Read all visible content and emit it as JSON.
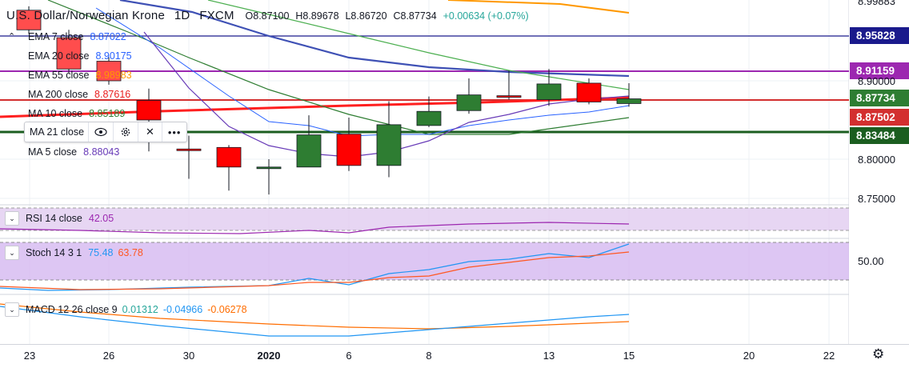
{
  "header": {
    "symbol": "U.S. Dollar/Norwegian Krone",
    "interval": "1D",
    "broker": "FXCM",
    "open": "O8.87100",
    "high": "H8.89678",
    "low": "L8.86720",
    "close": "C8.87734",
    "change": "+0.00634 (+0.07%)"
  },
  "legend": [
    {
      "name": "EMA 7 close",
      "value": "8.87022",
      "color": "#2962ff"
    },
    {
      "name": "EMA 20 close",
      "value": "8.90175",
      "color": "#2962ff"
    },
    {
      "name": "EMA 55 close",
      "value": "8.98983",
      "color": "#ff9800"
    },
    {
      "name": "MA 200 close",
      "value": "8.87616",
      "color": "#e91e1e"
    },
    {
      "name": "MA 10 close",
      "value": "8.85189",
      "color": "#2e7d32"
    },
    {
      "name": "MA 5 close",
      "value": "8.88043",
      "color": "#673ab7"
    }
  ],
  "ma21": {
    "name": "MA 21 close",
    "eye_icon": "eye-icon",
    "settings_icon": "gear-icon",
    "remove_icon": "close-icon",
    "more_icon": "more-icon"
  },
  "rsi": {
    "label": "RSI 14 close",
    "value": "42.05",
    "color": "#9c27b0"
  },
  "stoch": {
    "label": "Stoch 14 3 1",
    "k": "75.48",
    "d": "63.78",
    "k_color": "#2196f3",
    "d_color": "#ff5722",
    "level": "50.00"
  },
  "macd": {
    "label": "MACD 12 26 close 9",
    "v1": "0.01312",
    "v2": "-0.04966",
    "v3": "-0.06278",
    "c1": "#26a69a",
    "c2": "#2196f3",
    "c3": "#ff6d00"
  },
  "price_axis": {
    "top_cut": "8.99883",
    "ticks": [
      "8.90000",
      "8.80000",
      "8.75000"
    ],
    "tags": [
      {
        "label": "8.95828",
        "color": "#1a1a8c"
      },
      {
        "label": "8.91159",
        "color": "#9c27b0"
      },
      {
        "label": "8.87734",
        "color": "#2e7d32"
      },
      {
        "label": "8.87502",
        "color": "#d32f2f"
      },
      {
        "label": "8.83484",
        "color": "#1b5e20"
      }
    ]
  },
  "x_axis": [
    "23",
    "26",
    "30",
    "2020",
    "6",
    "8",
    "13",
    "15",
    "20",
    "22"
  ],
  "chart_data": {
    "type": "candlestick",
    "candles": [
      {
        "o": 8.99,
        "h": 8.995,
        "l": 8.96,
        "c": 8.965,
        "color": "#ff4d4d"
      },
      {
        "o": 8.955,
        "h": 8.965,
        "l": 8.91,
        "c": 8.915,
        "color": "#ff4d4d"
      },
      {
        "o": 8.925,
        "h": 8.93,
        "l": 8.895,
        "c": 8.9,
        "color": "#ff4d4d"
      },
      {
        "o": 8.875,
        "h": 8.89,
        "l": 8.81,
        "c": 8.85,
        "color": "#ff0000"
      },
      {
        "o": 8.813,
        "h": 8.83,
        "l": 8.775,
        "c": 8.812,
        "color": "#ff0000"
      },
      {
        "o": 8.815,
        "h": 8.818,
        "l": 8.76,
        "c": 8.79,
        "color": "#ff0000"
      },
      {
        "o": 8.79,
        "h": 8.8,
        "l": 8.755,
        "c": 8.789,
        "color": "#2e7d32"
      },
      {
        "o": 8.79,
        "h": 8.856,
        "l": 8.79,
        "c": 8.831,
        "color": "#2e7d32"
      },
      {
        "o": 8.832,
        "h": 8.853,
        "l": 8.785,
        "c": 8.792,
        "color": "#ff0000"
      },
      {
        "o": 8.792,
        "h": 8.874,
        "l": 8.777,
        "c": 8.844,
        "color": "#2e7d32"
      },
      {
        "o": 8.843,
        "h": 8.88,
        "l": 8.841,
        "c": 8.861,
        "color": "#2e7d32"
      },
      {
        "o": 8.862,
        "h": 8.903,
        "l": 8.858,
        "c": 8.882,
        "color": "#2e7d32"
      },
      {
        "o": 8.881,
        "h": 8.913,
        "l": 8.876,
        "c": 8.879,
        "color": "#ff0000"
      },
      {
        "o": 8.876,
        "h": 8.915,
        "l": 8.868,
        "c": 8.896,
        "color": "#2e7d32"
      },
      {
        "o": 8.897,
        "h": 8.903,
        "l": 8.87,
        "c": 8.873,
        "color": "#ff0000"
      },
      {
        "o": 8.871,
        "h": 8.897,
        "l": 8.867,
        "c": 8.877,
        "color": "#2e7d32"
      }
    ]
  }
}
